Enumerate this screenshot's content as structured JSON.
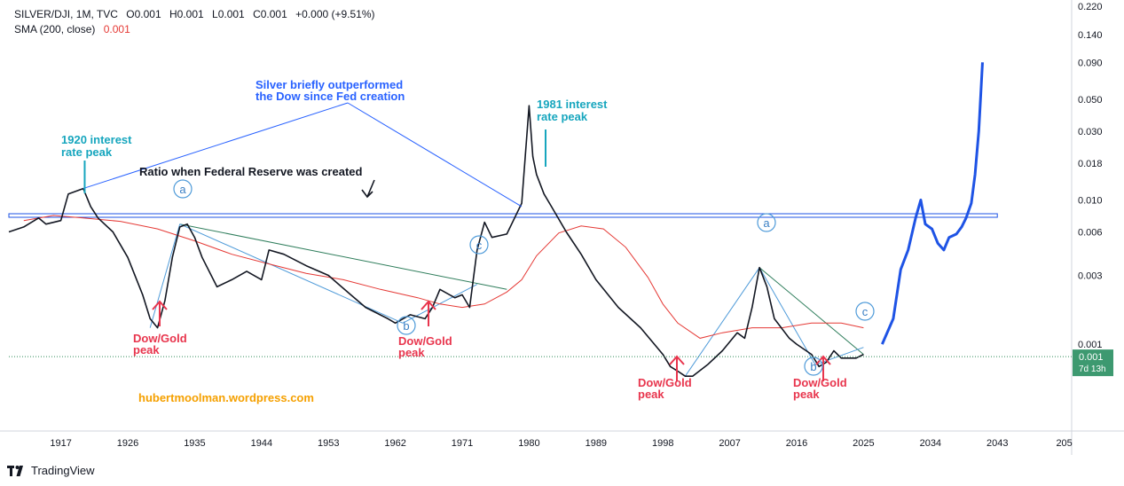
{
  "header": {
    "symbol_line": "SILVER/DJI, 1M, TVC",
    "open": "O0.001",
    "high": "H0.001",
    "low": "L0.001",
    "close": "C0.001",
    "change": "+0.000 (+9.51%)",
    "sma_label": "SMA (200, close)",
    "sma_value": "0.001"
  },
  "branding": {
    "name": "TradingView"
  },
  "colors": {
    "price": "#131722",
    "sma": "#e53935",
    "projection": "#1e53e5",
    "level": "#1e53e5",
    "downtrend": "#2e7d5b",
    "wedge": "#4f9bd9",
    "accent_teal": "#17a6be",
    "accent_blue": "#2962ff",
    "accent_red": "#e8354d",
    "accent_orange": "#f5a000"
  },
  "chart_data": {
    "type": "line",
    "title": "SILVER/DJI, 1M, TVC",
    "y_scale": "log",
    "y_ticks": [
      "0.220",
      "0.140",
      "0.090",
      "0.050",
      "0.030",
      "0.018",
      "0.010",
      "0.006",
      "0.003",
      "0.001"
    ],
    "y_tick_values": [
      0.22,
      0.14,
      0.09,
      0.05,
      0.03,
      0.018,
      0.01,
      0.006,
      0.003,
      0.001
    ],
    "x_ticks": [
      "1917",
      "1926",
      "1935",
      "1944",
      "1953",
      "1962",
      "1971",
      "1980",
      "1989",
      "1998",
      "2007",
      "2016",
      "2025",
      "2034",
      "2043",
      "205"
    ],
    "x_range": [
      1910,
      2053
    ],
    "y_range": [
      0.00025,
      0.23
    ],
    "current_price_label": "0.001",
    "countdown_label": "7d 13h",
    "series": [
      {
        "name": "SILVER/DJI",
        "x": [
          1910,
          1912,
          1914,
          1915,
          1917,
          1918,
          1920,
          1921,
          1922,
          1924,
          1926,
          1928,
          1929,
          1930,
          1931,
          1932,
          1933,
          1934,
          1935,
          1936,
          1938,
          1940,
          1942,
          1944,
          1945,
          1947,
          1950,
          1953,
          1956,
          1958,
          1961,
          1962,
          1964,
          1966,
          1967,
          1968,
          1970,
          1971,
          1972,
          1973,
          1974,
          1975,
          1977,
          1979,
          1980,
          1980.5,
          1981,
          1982,
          1983,
          1985,
          1987,
          1989,
          1992,
          1995,
          1998,
          1999,
          2000,
          2001,
          2002,
          2004,
          2006,
          2008,
          2009,
          2010,
          2011,
          2012,
          2013,
          2015,
          2016,
          2018,
          2019,
          2020,
          2021,
          2022,
          2024,
          2025
        ],
        "values": [
          0.006,
          0.0065,
          0.0075,
          0.0068,
          0.0072,
          0.011,
          0.012,
          0.009,
          0.0075,
          0.006,
          0.004,
          0.0022,
          0.0015,
          0.0013,
          0.002,
          0.004,
          0.0065,
          0.0068,
          0.0055,
          0.004,
          0.0025,
          0.0028,
          0.0032,
          0.0028,
          0.0045,
          0.0042,
          0.0035,
          0.003,
          0.0022,
          0.0018,
          0.0015,
          0.0014,
          0.0016,
          0.0015,
          0.0018,
          0.0024,
          0.0021,
          0.0022,
          0.0018,
          0.0045,
          0.007,
          0.0055,
          0.0058,
          0.0095,
          0.045,
          0.02,
          0.015,
          0.011,
          0.009,
          0.006,
          0.0042,
          0.0028,
          0.0018,
          0.0013,
          0.00085,
          0.0007,
          0.00065,
          0.0006,
          0.0006,
          0.00072,
          0.0009,
          0.0012,
          0.0011,
          0.0018,
          0.0034,
          0.0025,
          0.0015,
          0.0011,
          0.001,
          0.00085,
          0.0007,
          0.00075,
          0.0009,
          0.0008,
          0.0008,
          0.00085
        ]
      },
      {
        "name": "SMA (200, close)",
        "x": [
          1912,
          1916,
          1920,
          1925,
          1930,
          1935,
          1940,
          1945,
          1950,
          1955,
          1960,
          1965,
          1968,
          1971,
          1974,
          1977,
          1979,
          1981,
          1984,
          1987,
          1990,
          1993,
          1996,
          1998,
          2000,
          2003,
          2006,
          2010,
          2014,
          2018,
          2022,
          2025
        ],
        "values": [
          0.0072,
          0.0078,
          0.0075,
          0.0071,
          0.0063,
          0.0052,
          0.0042,
          0.0036,
          0.0031,
          0.0028,
          0.0024,
          0.0021,
          0.0019,
          0.0018,
          0.0019,
          0.0023,
          0.0028,
          0.0041,
          0.0059,
          0.0066,
          0.0063,
          0.0047,
          0.0029,
          0.0019,
          0.0014,
          0.0011,
          0.0012,
          0.0013,
          0.0013,
          0.0014,
          0.0014,
          0.0013
        ]
      },
      {
        "name": "Projection",
        "x": [
          2027.5,
          2029,
          2030,
          2031,
          2032,
          2032.7,
          2033.3,
          2034.2,
          2035,
          2035.8,
          2036.5,
          2037.5,
          2038.2,
          2038.8,
          2039.5,
          2040,
          2040.5,
          2041
        ],
        "values": [
          0.001,
          0.0015,
          0.0033,
          0.0045,
          0.0075,
          0.01,
          0.0068,
          0.0063,
          0.005,
          0.0045,
          0.0055,
          0.0058,
          0.0065,
          0.0075,
          0.0095,
          0.015,
          0.03,
          0.09
        ]
      }
    ],
    "fed_level": {
      "value": 0.0078,
      "x_start": 1910,
      "x_end": 2043
    },
    "trendlines": [
      {
        "name": "downtrend-1",
        "x": [
          1933,
          1977
        ],
        "values": [
          0.0068,
          0.0024
        ]
      },
      {
        "name": "wedge-left",
        "x": [
          1929,
          1933
        ],
        "values": [
          0.0013,
          0.0068
        ]
      },
      {
        "name": "wedge-lower",
        "x": [
          1933,
          1963
        ],
        "values": [
          0.0068,
          0.0014
        ]
      },
      {
        "name": "wedge-right",
        "x": [
          1963,
          1973
        ],
        "values": [
          0.0014,
          0.0026
        ]
      },
      {
        "name": "downtrend-2",
        "x": [
          2011,
          2025
        ],
        "values": [
          0.0034,
          0.00085
        ]
      },
      {
        "name": "wedge-right-2",
        "x": [
          2011,
          2018.5
        ],
        "values": [
          0.0034,
          0.00072
        ]
      },
      {
        "name": "wedge-left-2",
        "x": [
          2001,
          2011
        ],
        "values": [
          0.0006,
          0.0034
        ]
      },
      {
        "name": "wedge-bottom-2",
        "x": [
          2018.5,
          2025
        ],
        "values": [
          0.00072,
          0.00095
        ]
      }
    ],
    "annotations": {
      "outperformed": "Silver briefly outperformed the Dow since Fed creation",
      "outperformed_line1": "Silver briefly outperformed",
      "outperformed_line2": "the Dow since Fed creation",
      "fed_ratio": "Ratio when Federal Reserve was created",
      "rate1920_line1": "1920 interest",
      "rate1920_line2": "rate peak",
      "rate1981_line1": "1981 interest",
      "rate1981_line2": "rate peak",
      "dowgold_line1": "Dow/Gold",
      "dowgold_line2": "peak",
      "label_a": "a",
      "label_b": "b",
      "label_c": "c",
      "watermark": "hubertmoolman.wordpress.com"
    }
  }
}
